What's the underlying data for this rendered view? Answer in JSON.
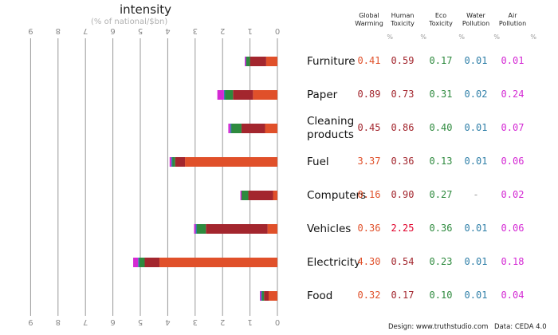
{
  "chart_data": {
    "type": "bar",
    "title": "intensity",
    "subtitle": "(% of national/$bn)",
    "xlim": [
      9,
      0
    ],
    "ticks": [
      "9",
      "8",
      "7",
      "6",
      "5",
      "4",
      "3",
      "2",
      "1",
      "0"
    ],
    "series": [
      {
        "key": "global_warming",
        "name": "Global Warming",
        "color": "#e0502a"
      },
      {
        "key": "human_toxicity",
        "name": "Human Toxicity",
        "color": "#a3262e"
      },
      {
        "key": "eco_toxicity",
        "name": "Eco Toxicity",
        "color": "#2e8a3e"
      },
      {
        "key": "water_pollution",
        "name": "Water Pollution",
        "color": "#2f7fa8"
      },
      {
        "key": "air_pollution",
        "name": "Air Pollution",
        "color": "#d42ad4"
      }
    ],
    "column_unit": "%",
    "categories": [
      "Furniture",
      "Paper",
      "Cleaning products",
      "Fuel",
      "Computers",
      "Vehicles",
      "Electricity",
      "Food"
    ],
    "category_lines": [
      [
        "Furniture"
      ],
      [
        "Paper"
      ],
      [
        "Cleaning",
        "products"
      ],
      [
        "Fuel"
      ],
      [
        "Computers"
      ],
      [
        "Vehicles"
      ],
      [
        "Electricity"
      ],
      [
        "Food"
      ]
    ],
    "values": [
      [
        0.41,
        0.59,
        0.17,
        0.01,
        0.01
      ],
      [
        0.89,
        0.73,
        0.31,
        0.02,
        0.24
      ],
      [
        0.45,
        0.86,
        0.4,
        0.01,
        0.07
      ],
      [
        3.37,
        0.36,
        0.13,
        0.01,
        0.06
      ],
      [
        0.16,
        0.9,
        0.27,
        null,
        0.02
      ],
      [
        0.36,
        2.25,
        0.36,
        0.01,
        0.06
      ],
      [
        4.3,
        0.54,
        0.23,
        0.01,
        0.18
      ],
      [
        0.32,
        0.17,
        0.1,
        0.01,
        0.04
      ]
    ],
    "value_labels": [
      [
        "0.41",
        "0.59",
        "0.17",
        "0.01",
        "0.01"
      ],
      [
        "0.89",
        "0.73",
        "0.31",
        "0.02",
        "0.24"
      ],
      [
        "0.45",
        "0.86",
        "0.40",
        "0.01",
        "0.07"
      ],
      [
        "3.37",
        "0.36",
        "0.13",
        "0.01",
        "0.06"
      ],
      [
        "0.16",
        "0.90",
        "0.27",
        "-",
        "0.02"
      ],
      [
        "0.36",
        "2.25",
        "0.36",
        "0.01",
        "0.06"
      ],
      [
        "4.30",
        "0.54",
        "0.23",
        "0.01",
        "0.18"
      ],
      [
        "0.32",
        "0.17",
        "0.10",
        "0.01",
        "0.04"
      ]
    ],
    "value_colors": [
      [
        "#e0502a",
        "#a3262e",
        "#2e8a3e",
        "#2f7fa8",
        "#d42ad4"
      ],
      [
        "#a3262e",
        "#a3262e",
        "#2e8a3e",
        "#2f7fa8",
        "#d42ad4"
      ],
      [
        "#a3262e",
        "#a3262e",
        "#2e8a3e",
        "#2f7fa8",
        "#d42ad4"
      ],
      [
        "#e0502a",
        "#a3262e",
        "#2e8a3e",
        "#2f7fa8",
        "#d42ad4"
      ],
      [
        "#e0502a",
        "#a3262e",
        "#2e8a3e",
        "#2f7fa8",
        "#d42ad4"
      ],
      [
        "#e0502a",
        "#e0002a",
        "#2e8a3e",
        "#2f7fa8",
        "#d42ad4"
      ],
      [
        "#e0502a",
        "#a3262e",
        "#2e8a3e",
        "#2f7fa8",
        "#d42ad4"
      ],
      [
        "#e0502a",
        "#a3262e",
        "#2e8a3e",
        "#2f7fa8",
        "#d42ad4"
      ]
    ]
  },
  "footer": {
    "design": "Design: www.truthstudio.com",
    "data": "Data: CEDA 4.0"
  }
}
